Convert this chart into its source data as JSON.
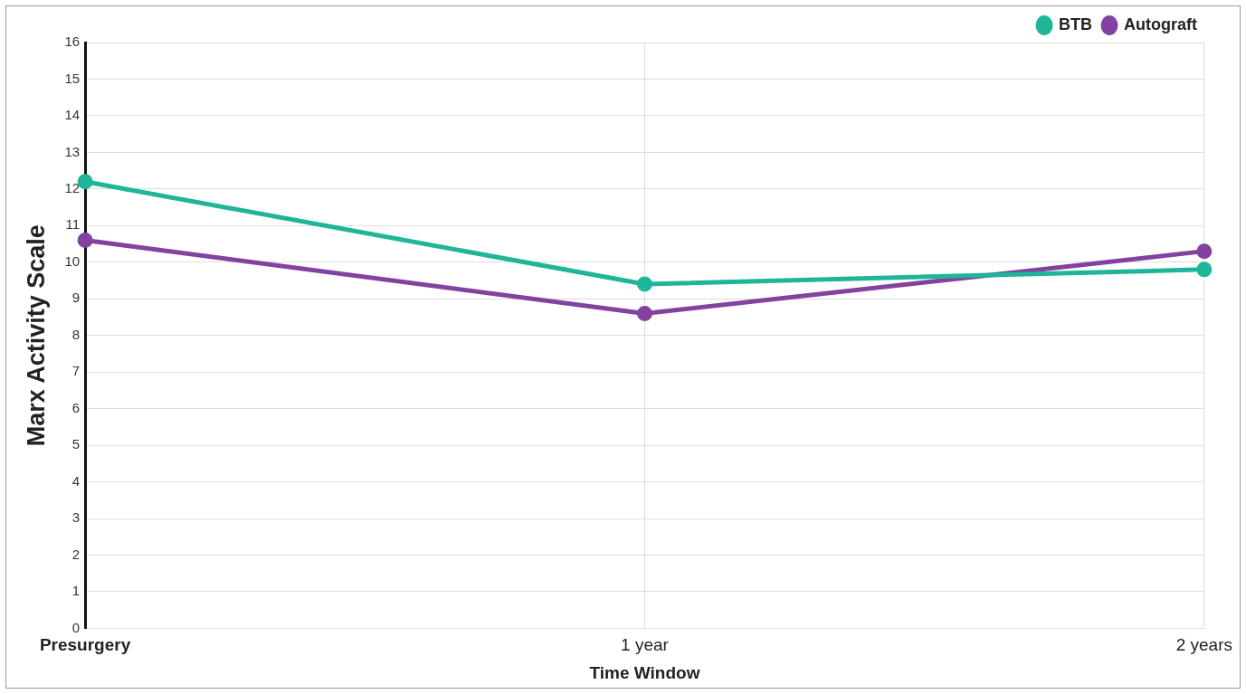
{
  "chart_data": {
    "type": "line",
    "xlabel": "Time Window",
    "ylabel": "Marx Activity Scale",
    "categories": [
      "Presurgery",
      "1 year",
      "2 years"
    ],
    "series": [
      {
        "name": "BTB",
        "color": "#1fb598",
        "values": [
          12.2,
          9.4,
          9.8
        ]
      },
      {
        "name": "Autograft",
        "color": "#8442a0",
        "values": [
          10.6,
          8.6,
          10.3
        ]
      }
    ],
    "ylim": [
      0,
      16
    ],
    "yticks": [
      0,
      1,
      2,
      3,
      4,
      5,
      6,
      7,
      8,
      9,
      10,
      11,
      12,
      13,
      14,
      15,
      16
    ],
    "grid": true,
    "legend": "top right",
    "marker": "circle",
    "line_style": "solid"
  }
}
